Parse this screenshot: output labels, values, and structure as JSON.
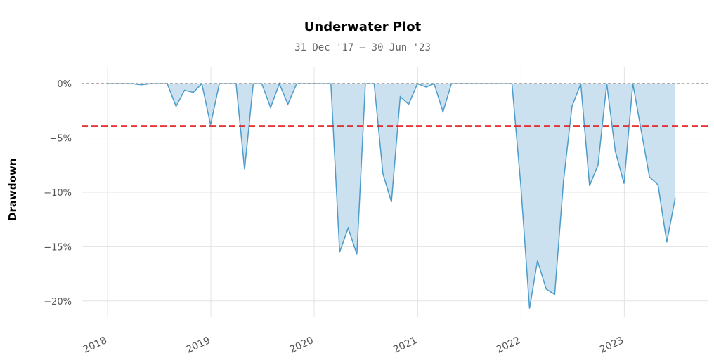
{
  "chart_data": {
    "type": "area",
    "title": "Underwater Plot",
    "subtitle": "31 Dec '17 – 30 Jun '23",
    "ylabel": "Drawdown",
    "xlabel": "",
    "xlim": [
      "2017-10-01",
      "2023-10-25"
    ],
    "ylim": [
      -21.5,
      1.5
    ],
    "y_ticks": [
      0,
      -5,
      -10,
      -15,
      -20
    ],
    "y_tick_labels": [
      "0%",
      "−5%",
      "−10%",
      "−15%",
      "−20%"
    ],
    "x_ticks": [
      "2018-01-01",
      "2019-01-01",
      "2020-01-01",
      "2021-01-01",
      "2022-01-01",
      "2023-01-01"
    ],
    "x_tick_labels": [
      "2018",
      "2019",
      "2020",
      "2021",
      "2022",
      "2023"
    ],
    "grid": true,
    "threshold": {
      "value": -3.9,
      "color": "#e41a1c",
      "style": "dashed"
    },
    "zero_line": {
      "value": 0,
      "color": "#333333",
      "style": "dashed"
    },
    "series": [
      {
        "color": "#4c9cc9",
        "fill_color": "#cce1f0",
        "points": [
          [
            "2017-12-31",
            0
          ],
          [
            "2018-01-31",
            0
          ],
          [
            "2018-02-28",
            0
          ],
          [
            "2018-03-31",
            0
          ],
          [
            "2018-04-30",
            -0.1
          ],
          [
            "2018-05-31",
            0
          ],
          [
            "2018-06-30",
            0
          ],
          [
            "2018-07-31",
            0
          ],
          [
            "2018-08-31",
            -2.1
          ],
          [
            "2018-09-30",
            -0.6
          ],
          [
            "2018-10-31",
            -0.8
          ],
          [
            "2018-11-30",
            0
          ],
          [
            "2018-12-31",
            -3.8
          ],
          [
            "2019-01-31",
            0
          ],
          [
            "2019-02-28",
            0
          ],
          [
            "2019-03-31",
            0
          ],
          [
            "2019-04-30",
            -7.9
          ],
          [
            "2019-05-31",
            0
          ],
          [
            "2019-06-30",
            0
          ],
          [
            "2019-07-31",
            -2.2
          ],
          [
            "2019-08-31",
            0
          ],
          [
            "2019-09-30",
            -1.9
          ],
          [
            "2019-10-31",
            0
          ],
          [
            "2019-11-30",
            0
          ],
          [
            "2019-12-31",
            0
          ],
          [
            "2020-01-31",
            0
          ],
          [
            "2020-02-29",
            0
          ],
          [
            "2020-03-31",
            -15.5
          ],
          [
            "2020-04-30",
            -13.3
          ],
          [
            "2020-05-31",
            -15.7
          ],
          [
            "2020-06-30",
            0
          ],
          [
            "2020-07-31",
            0
          ],
          [
            "2020-08-31",
            -8.3
          ],
          [
            "2020-09-30",
            -10.9
          ],
          [
            "2020-10-31",
            -1.2
          ],
          [
            "2020-11-30",
            -1.9
          ],
          [
            "2020-12-31",
            0
          ],
          [
            "2021-01-31",
            -0.3
          ],
          [
            "2021-02-28",
            0
          ],
          [
            "2021-03-31",
            -2.6
          ],
          [
            "2021-04-30",
            0
          ],
          [
            "2021-05-31",
            0
          ],
          [
            "2021-06-30",
            0
          ],
          [
            "2021-07-31",
            0
          ],
          [
            "2021-08-31",
            0
          ],
          [
            "2021-09-30",
            0
          ],
          [
            "2021-10-31",
            0
          ],
          [
            "2021-11-30",
            0
          ],
          [
            "2021-12-31",
            -9.3
          ],
          [
            "2022-01-31",
            -20.7
          ],
          [
            "2022-02-28",
            -16.3
          ],
          [
            "2022-03-31",
            -18.9
          ],
          [
            "2022-04-30",
            -19.4
          ],
          [
            "2022-05-31",
            -9.0
          ],
          [
            "2022-06-30",
            -2.1
          ],
          [
            "2022-07-31",
            0
          ],
          [
            "2022-08-31",
            -9.4
          ],
          [
            "2022-09-30",
            -7.5
          ],
          [
            "2022-10-31",
            0
          ],
          [
            "2022-11-30",
            -6.2
          ],
          [
            "2022-12-31",
            -9.2
          ],
          [
            "2023-01-31",
            0
          ],
          [
            "2023-02-28",
            -4.1
          ],
          [
            "2023-03-31",
            -8.6
          ],
          [
            "2023-04-30",
            -9.3
          ],
          [
            "2023-05-31",
            -14.6
          ],
          [
            "2023-06-30",
            -10.5
          ]
        ]
      }
    ]
  }
}
